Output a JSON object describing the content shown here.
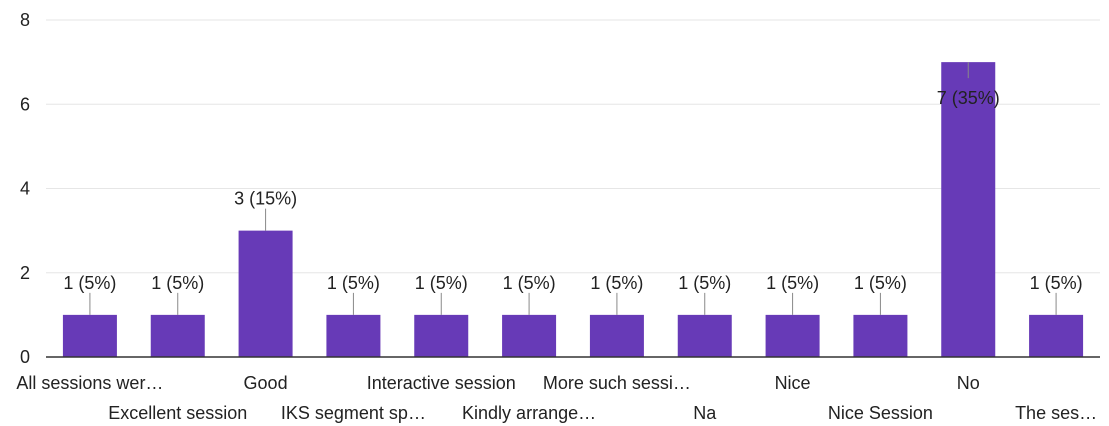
{
  "chart_data": {
    "type": "bar",
    "categories": [
      "All sessions wer…",
      "Excellent session",
      "Good",
      "IKS segment sp…",
      "Interactive session",
      "Kindly arrange…",
      "More such sessi…",
      "Na",
      "Nice",
      "Nice Session",
      "No",
      "The ses…"
    ],
    "values": [
      1,
      1,
      3,
      1,
      1,
      1,
      1,
      1,
      1,
      1,
      7,
      1
    ],
    "data_labels": [
      "1 (5%)",
      "1 (5%)",
      "3 (15%)",
      "1 (5%)",
      "1 (5%)",
      "1 (5%)",
      "1 (5%)",
      "1 (5%)",
      "1 (5%)",
      "1 (5%)",
      "7 (35%)",
      "1 (5%)"
    ],
    "ylim": [
      0,
      8
    ],
    "yticks": [
      "0",
      "2",
      "4",
      "6",
      "8"
    ],
    "grid": true,
    "bar_color": "#673ab7",
    "title": "",
    "xlabel": "",
    "ylabel": ""
  }
}
